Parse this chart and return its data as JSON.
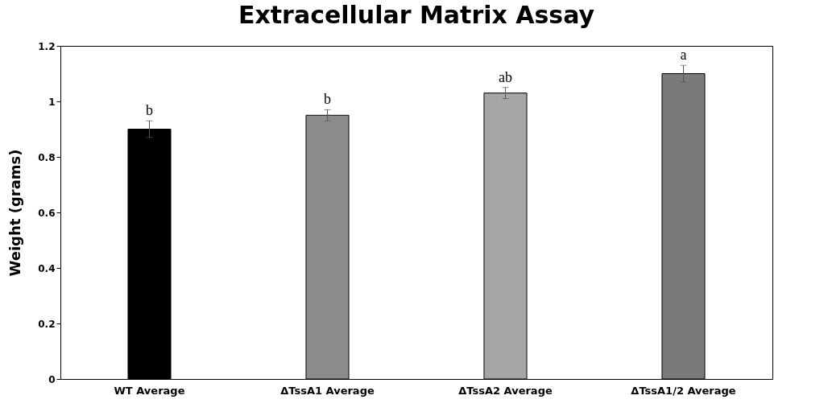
{
  "chart_data": {
    "type": "bar",
    "title": "Extracellular Matrix Assay",
    "ylabel": "Weight (grams)",
    "categories": [
      "WT Average",
      "ΔTssA1 Average",
      "ΔTssA2 Average",
      "ΔTssA1/2 Average"
    ],
    "values": [
      0.9,
      0.95,
      1.03,
      1.1
    ],
    "errors": [
      0.03,
      0.02,
      0.02,
      0.03
    ],
    "colors": [
      "#000000",
      "#8c8c8c",
      "#a6a6a6",
      "#7a7a7a"
    ],
    "ylim": [
      0,
      1.2
    ],
    "yticks": [
      0,
      0.2,
      0.4,
      0.6,
      0.8,
      1,
      1.2
    ],
    "grid": false,
    "legend": false,
    "annotations": [
      "b",
      "b",
      "ab",
      "a"
    ]
  }
}
